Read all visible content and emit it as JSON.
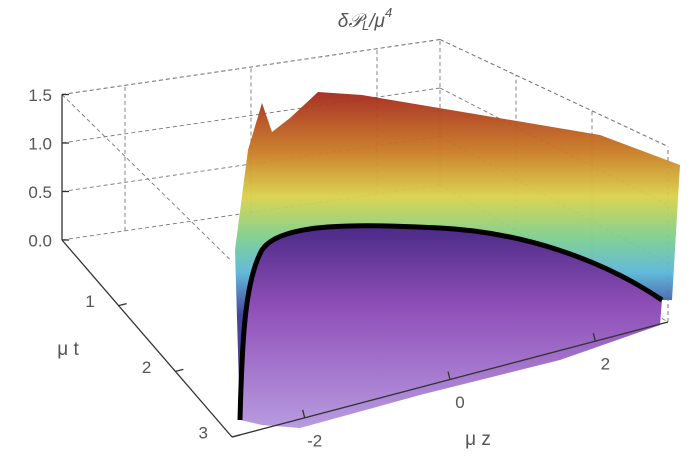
{
  "chart_data": {
    "type": "surface3d",
    "title": [
      "δ𝒫",
      "L",
      "/μ",
      "4"
    ],
    "xlabel": "μ z",
    "ylabel": "μ t",
    "xlim": [
      -3,
      3
    ],
    "xticks": [
      -2,
      0,
      2
    ],
    "ylim": [
      0,
      3
    ],
    "yticks": [
      1,
      2,
      3
    ],
    "zlim": [
      0,
      1.5
    ],
    "zticks": [
      {
        "value": 0,
        "label": "0.0"
      },
      {
        "value": 0.5,
        "label": "0.5"
      },
      {
        "value": 1,
        "label": "1.0"
      },
      {
        "value": 1.5,
        "label": "1.5"
      }
    ],
    "grid": true
  }
}
